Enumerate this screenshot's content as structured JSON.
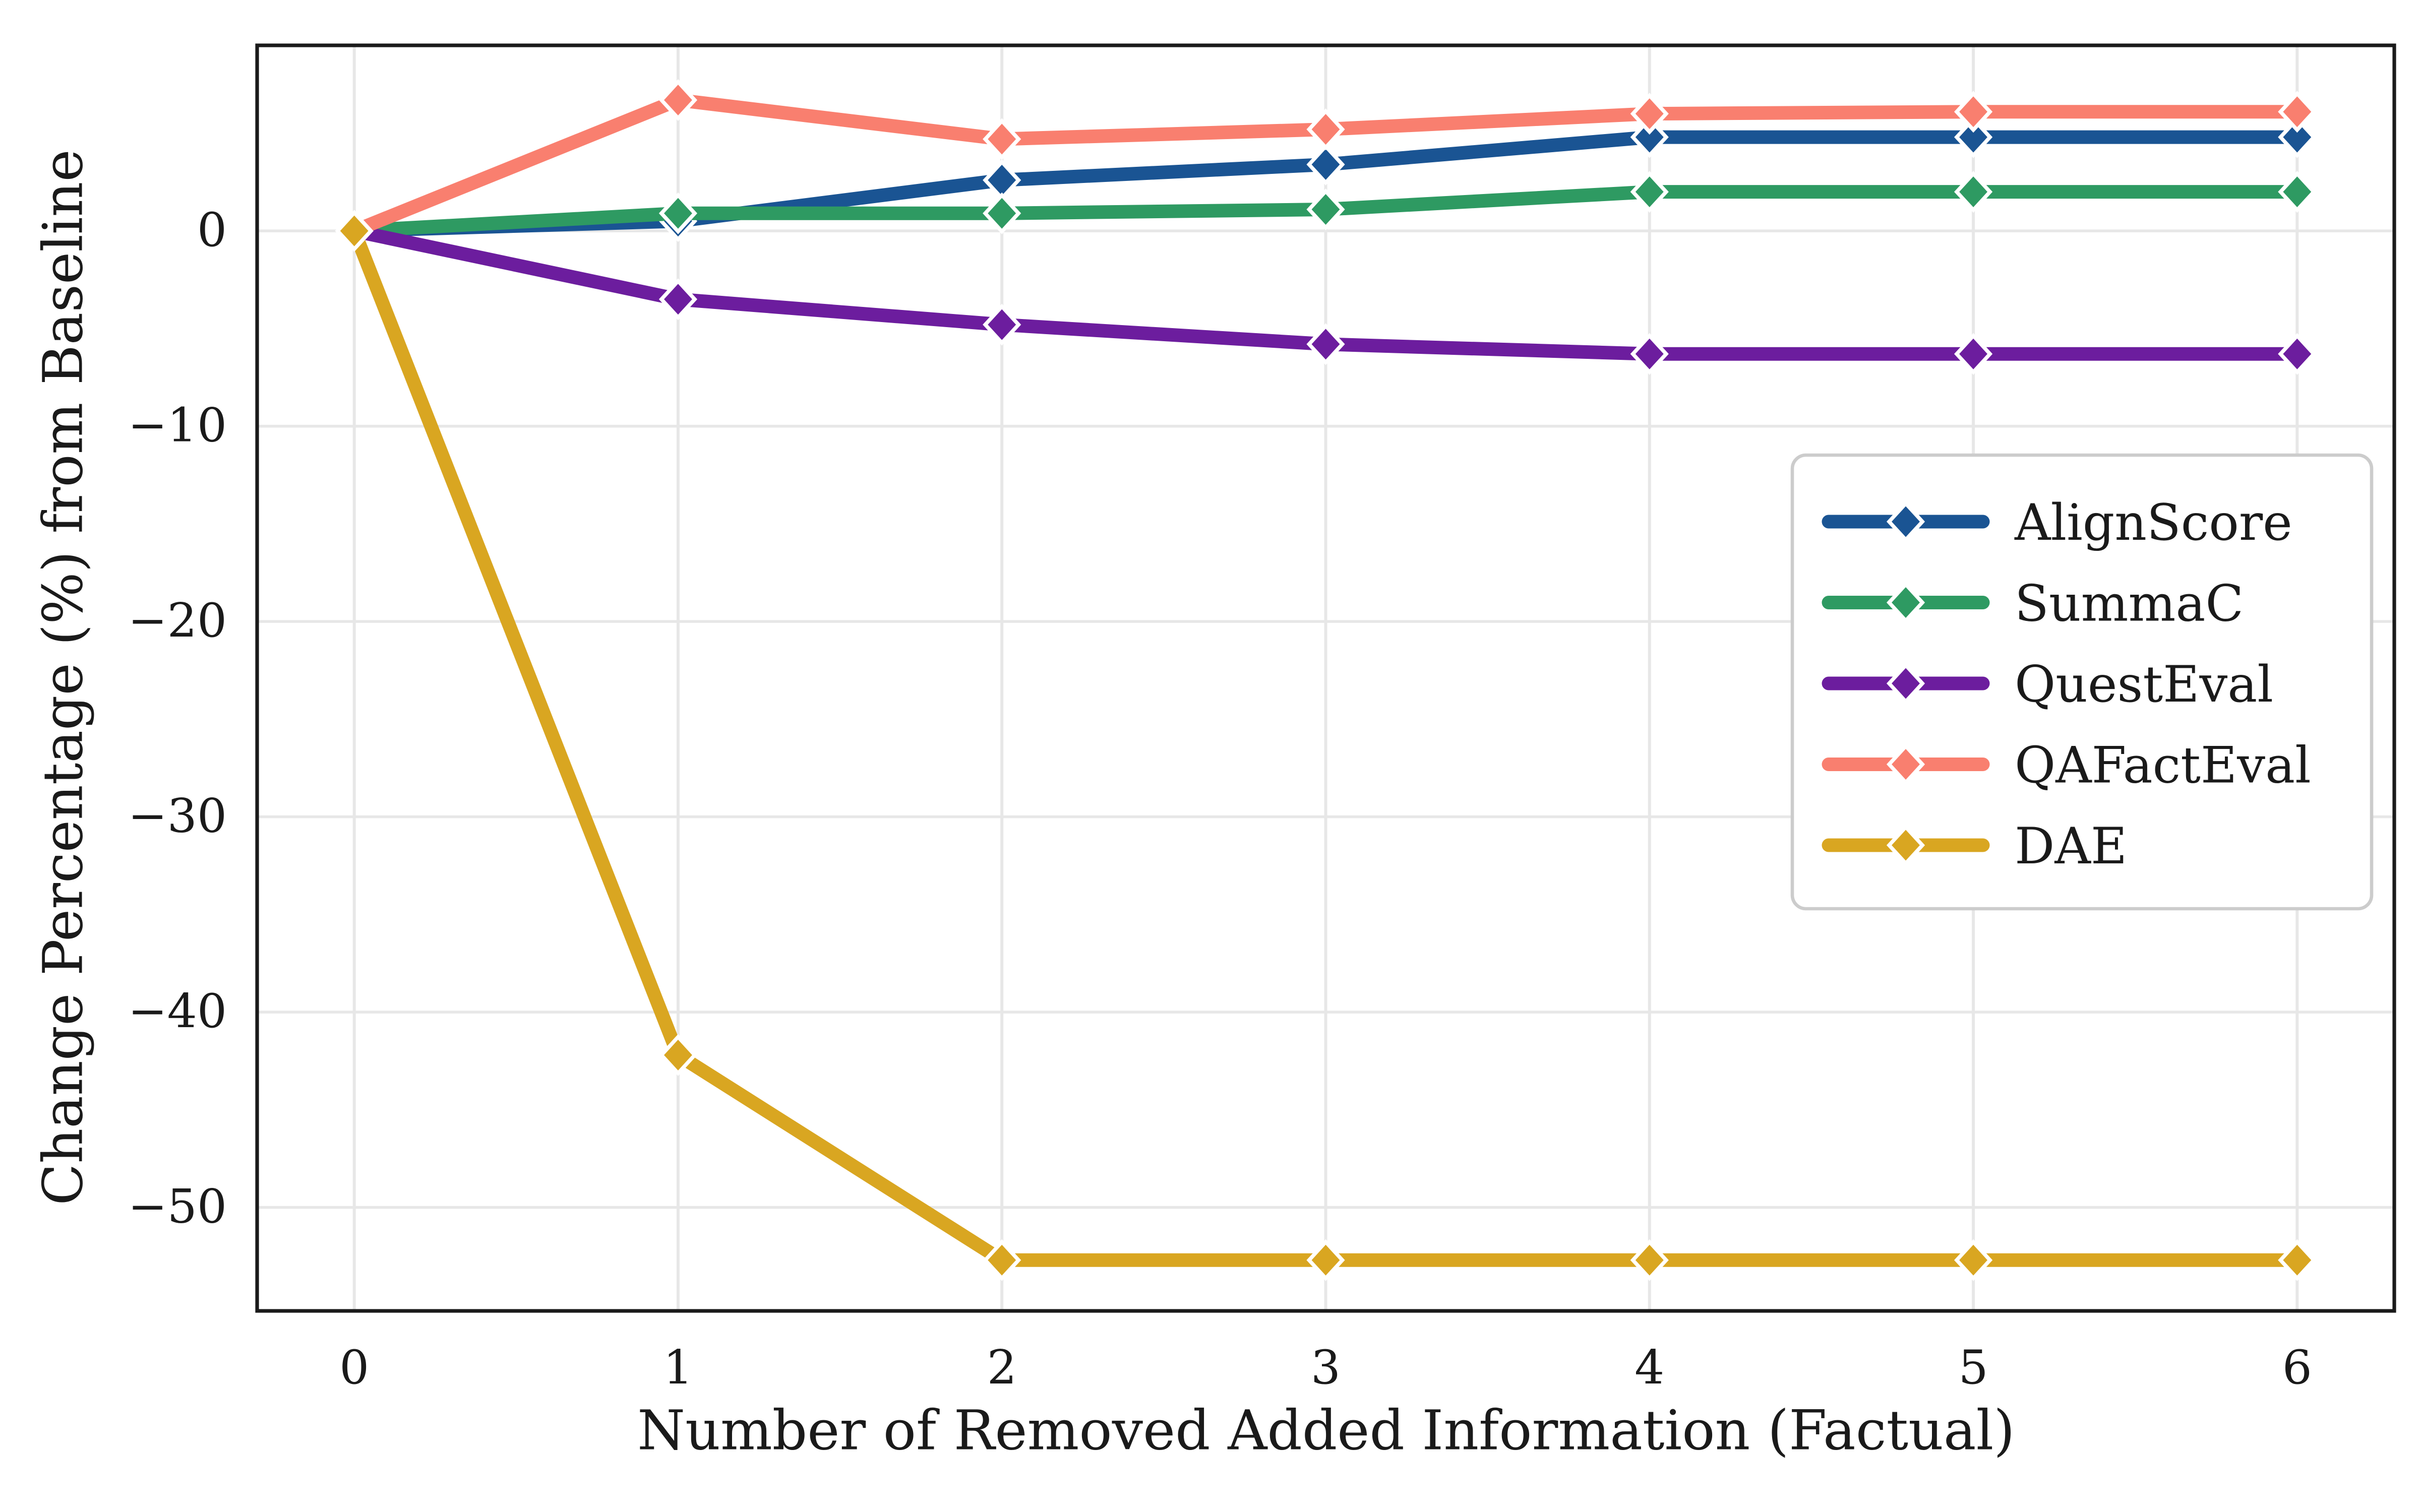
{
  "figure": {
    "background": "#ffffff",
    "text_color": "#1a1a1a",
    "xlabel": "Number of Removed Added Information (Factual)",
    "ylabel": "Change Percentage (%) from Baseline"
  },
  "chart_data": {
    "type": "line",
    "title": "",
    "xlabel": "Number of Removed Added Information (Factual)",
    "ylabel": "Change Percentage (%) from Baseline",
    "x": [
      0,
      1,
      2,
      3,
      4,
      5,
      6
    ],
    "series": [
      {
        "name": "AlignScore",
        "color": "#1a5493",
        "values": [
          0,
          0.5,
          2.6,
          3.4,
          4.8,
          4.8,
          4.8
        ]
      },
      {
        "name": "SummaC",
        "color": "#2e9a62",
        "values": [
          0,
          0.9,
          0.9,
          1.1,
          2.0,
          2.0,
          2.0
        ]
      },
      {
        "name": "QuestEval",
        "color": "#6c1d9e",
        "values": [
          0,
          -3.5,
          -4.8,
          -5.8,
          -6.3,
          -6.3,
          -6.3
        ]
      },
      {
        "name": "QAFactEval",
        "color": "#f97f6f",
        "values": [
          0,
          6.7,
          4.7,
          5.2,
          6.0,
          6.1,
          6.1
        ]
      },
      {
        "name": "DAE",
        "color": "#d9a621",
        "values": [
          0,
          -42.2,
          -52.7,
          -52.7,
          -52.7,
          -52.7,
          -52.7
        ]
      }
    ],
    "xticks": [
      0,
      1,
      2,
      3,
      4,
      5,
      6
    ],
    "xtick_labels": [
      "0",
      "1",
      "2",
      "3",
      "4",
      "5",
      "6"
    ],
    "yticks": [
      0,
      -10,
      -20,
      -30,
      -40,
      -50
    ],
    "ytick_labels": [
      "0",
      "−10",
      "−20",
      "−30",
      "−40",
      "−50"
    ],
    "xlim": [
      -0.3,
      6.3
    ],
    "ylim": [
      -55.3,
      9.5
    ],
    "grid": true,
    "grid_color": "#e7e7e7",
    "spine_color": "#1a1a1a",
    "marker": "diamond",
    "marker_edge_color": "#ffffff",
    "legend_position": "center right",
    "legend_border_color": "#cccccc",
    "legend_background": "#ffffff"
  },
  "legend": {
    "entries": [
      "AlignScore",
      "SummaC",
      "QuestEval",
      "QAFactEval",
      "DAE"
    ]
  }
}
